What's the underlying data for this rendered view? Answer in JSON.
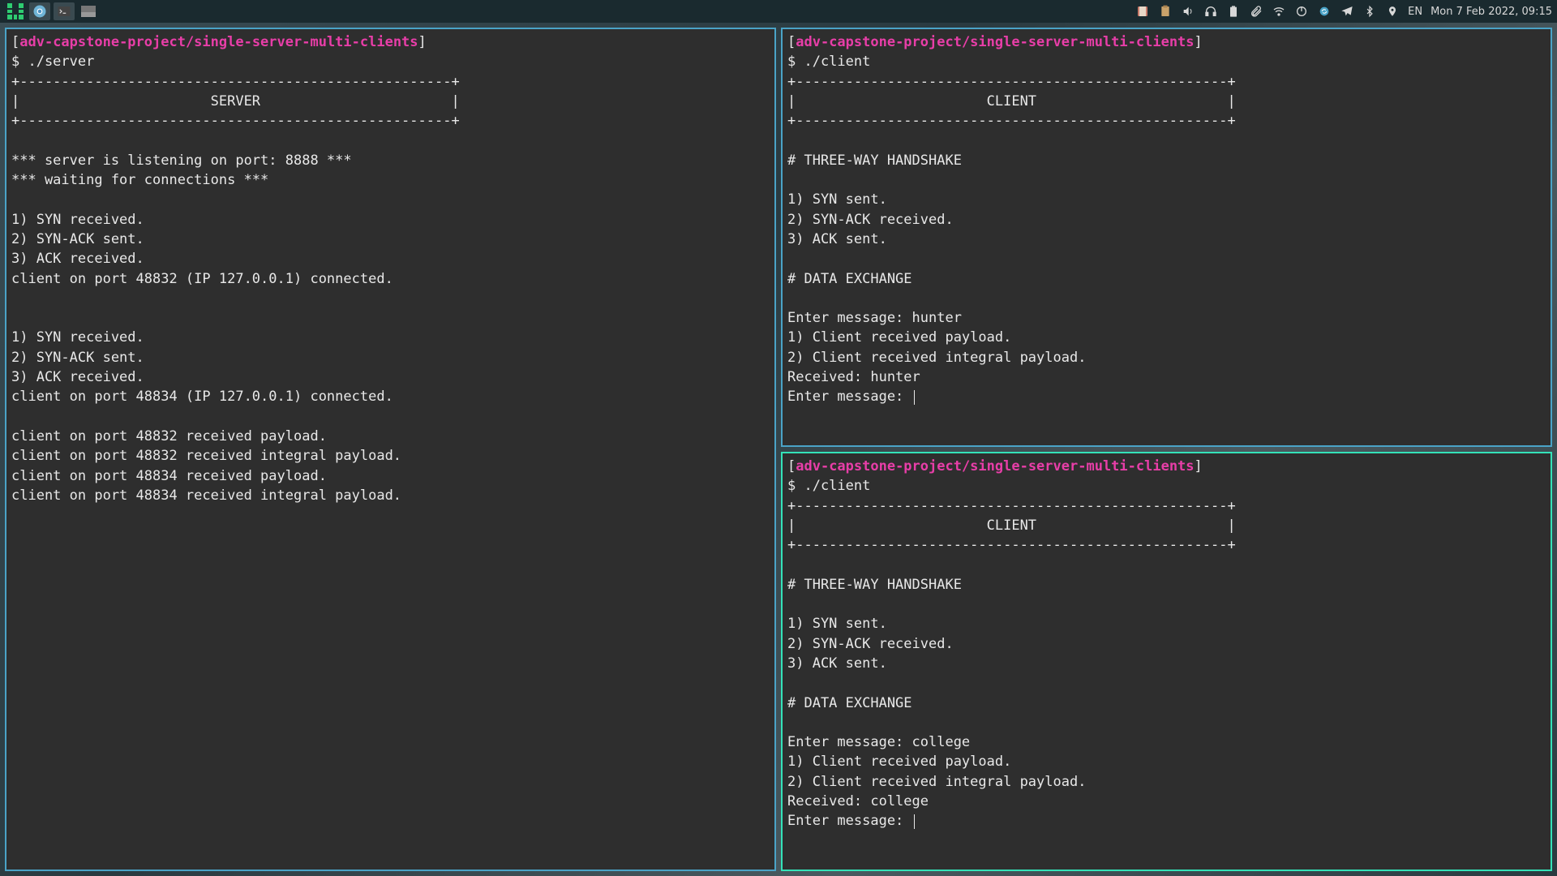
{
  "colors": {
    "taskbar_bg": "#1a2a2f",
    "terminal_bg": "#2e2e2e",
    "terminal_fg": "#e8e8e8",
    "border_normal": "#4aa3c7",
    "border_focused": "#34e2b8",
    "path_magenta": "#e83ea8"
  },
  "taskbar": {
    "lang": "EN",
    "clock": "Mon 7 Feb 2022, 09:15"
  },
  "prompt": {
    "open": "[",
    "path": "adv-capstone-project/single-server-multi-clients",
    "close": "]"
  },
  "terminals": {
    "server": {
      "cmd": "$ ./server",
      "divider": "+----------------------------------------------------+",
      "label": "|                       SERVER                       |",
      "lines": [
        "",
        "*** server is listening on port: 8888 ***",
        "*** waiting for connections ***",
        "",
        "1) SYN received.",
        "2) SYN-ACK sent.",
        "3) ACK received.",
        "client on port 48832 (IP 127.0.0.1) connected.",
        "",
        "",
        "1) SYN received.",
        "2) SYN-ACK sent.",
        "3) ACK received.",
        "client on port 48834 (IP 127.0.0.1) connected.",
        "",
        "client on port 48832 received payload.",
        "client on port 48832 received integral payload.",
        "client on port 48834 received payload.",
        "client on port 48834 received integral payload."
      ]
    },
    "client1": {
      "cmd": "$ ./client",
      "divider": "+----------------------------------------------------+",
      "label": "|                       CLIENT                       |",
      "lines": [
        "",
        "# THREE-WAY HANDSHAKE",
        "",
        "1) SYN sent.",
        "2) SYN-ACK received.",
        "3) ACK sent.",
        "",
        "# DATA EXCHANGE",
        "",
        "Enter message: hunter",
        "1) Client received payload.",
        "2) Client received integral payload.",
        "Received: hunter",
        "Enter message: "
      ]
    },
    "client2": {
      "cmd": "$ ./client",
      "divider": "+----------------------------------------------------+",
      "label": "|                       CLIENT                       |",
      "lines": [
        "",
        "# THREE-WAY HANDSHAKE",
        "",
        "1) SYN sent.",
        "2) SYN-ACK received.",
        "3) ACK sent.",
        "",
        "# DATA EXCHANGE",
        "",
        "Enter message: college",
        "1) Client received payload.",
        "2) Client received integral payload.",
        "Received: college",
        "Enter message: "
      ]
    }
  }
}
